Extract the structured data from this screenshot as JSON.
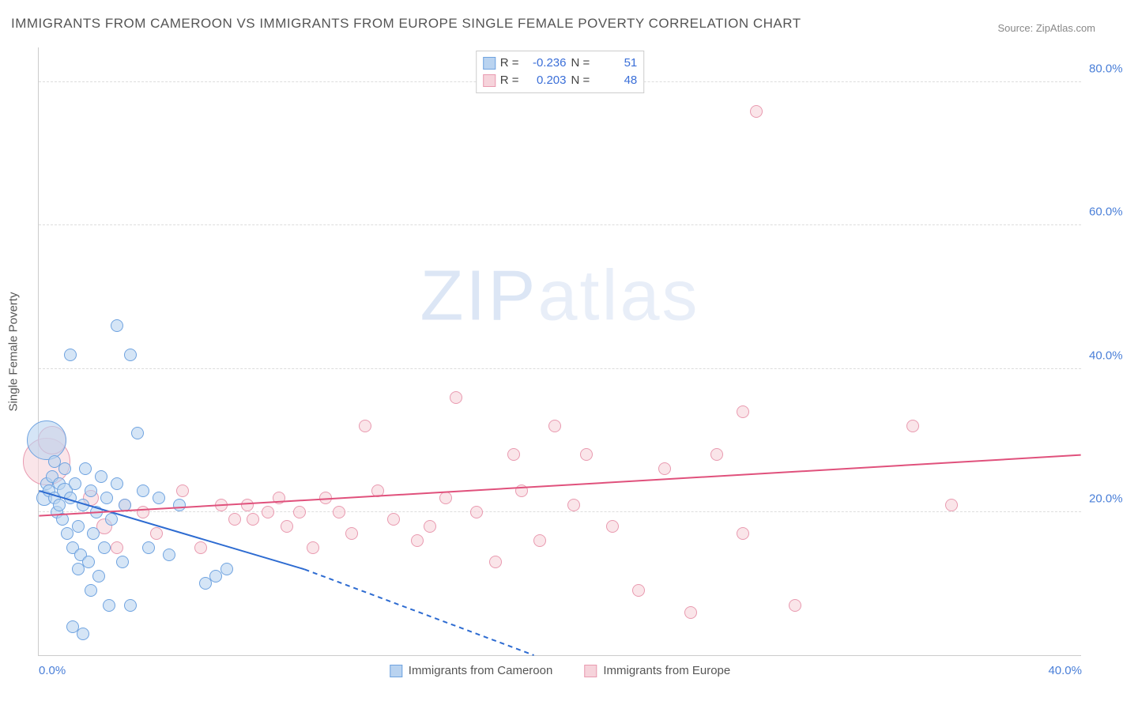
{
  "title": "IMMIGRANTS FROM CAMEROON VS IMMIGRANTS FROM EUROPE SINGLE FEMALE POVERTY CORRELATION CHART",
  "source": "Source: ZipAtlas.com",
  "watermark": {
    "zip": "ZIP",
    "atlas": "atlas"
  },
  "ylabel": "Single Female Poverty",
  "chart": {
    "type": "scatter",
    "xlim": [
      0,
      40
    ],
    "ylim": [
      0,
      85
    ],
    "xtick_labels": [
      "0.0%",
      "40.0%"
    ],
    "xtick_positions": [
      0,
      40
    ],
    "ytick_labels": [
      "20.0%",
      "40.0%",
      "60.0%",
      "80.0%"
    ],
    "ytick_positions": [
      20,
      40,
      60,
      80
    ],
    "background_color": "#ffffff",
    "grid_color": "#dddddd",
    "axis_color": "#cccccc",
    "tick_color": "#4a7fd8",
    "marker_default_radius": 8,
    "series": [
      {
        "name": "Immigrants from Cameroon",
        "fill": "#b9d3f0",
        "stroke": "#6fa3e0",
        "R": "-0.236",
        "N": "51",
        "trend": {
          "x1": 0,
          "y1": 23,
          "x2_solid": 10.2,
          "y2_solid": 12,
          "x2_dash": 19,
          "y2_dash": 0,
          "color": "#2d6bd1",
          "width": 2
        },
        "points": [
          {
            "x": 0.2,
            "y": 22,
            "r": 10
          },
          {
            "x": 0.3,
            "y": 24,
            "r": 8
          },
          {
            "x": 0.3,
            "y": 30,
            "r": 25
          },
          {
            "x": 0.4,
            "y": 23,
            "r": 8
          },
          {
            "x": 0.5,
            "y": 25,
            "r": 8
          },
          {
            "x": 0.6,
            "y": 22,
            "r": 8
          },
          {
            "x": 0.6,
            "y": 27,
            "r": 8
          },
          {
            "x": 0.7,
            "y": 20,
            "r": 8
          },
          {
            "x": 0.8,
            "y": 24,
            "r": 8
          },
          {
            "x": 0.8,
            "y": 21,
            "r": 8
          },
          {
            "x": 0.9,
            "y": 19,
            "r": 8
          },
          {
            "x": 1.0,
            "y": 26,
            "r": 8
          },
          {
            "x": 1.0,
            "y": 23,
            "r": 10
          },
          {
            "x": 1.1,
            "y": 17,
            "r": 8
          },
          {
            "x": 1.2,
            "y": 22,
            "r": 8
          },
          {
            "x": 1.2,
            "y": 42,
            "r": 8
          },
          {
            "x": 1.3,
            "y": 15,
            "r": 8
          },
          {
            "x": 1.3,
            "y": 4,
            "r": 8
          },
          {
            "x": 1.4,
            "y": 24,
            "r": 8
          },
          {
            "x": 1.5,
            "y": 18,
            "r": 8
          },
          {
            "x": 1.5,
            "y": 12,
            "r": 8
          },
          {
            "x": 1.6,
            "y": 14,
            "r": 8
          },
          {
            "x": 1.7,
            "y": 21,
            "r": 8
          },
          {
            "x": 1.7,
            "y": 3,
            "r": 8
          },
          {
            "x": 1.8,
            "y": 26,
            "r": 8
          },
          {
            "x": 1.9,
            "y": 13,
            "r": 8
          },
          {
            "x": 2.0,
            "y": 23,
            "r": 8
          },
          {
            "x": 2.0,
            "y": 9,
            "r": 8
          },
          {
            "x": 2.1,
            "y": 17,
            "r": 8
          },
          {
            "x": 2.2,
            "y": 20,
            "r": 8
          },
          {
            "x": 2.3,
            "y": 11,
            "r": 8
          },
          {
            "x": 2.4,
            "y": 25,
            "r": 8
          },
          {
            "x": 2.5,
            "y": 15,
            "r": 8
          },
          {
            "x": 2.6,
            "y": 22,
            "r": 8
          },
          {
            "x": 2.7,
            "y": 7,
            "r": 8
          },
          {
            "x": 2.8,
            "y": 19,
            "r": 8
          },
          {
            "x": 3.0,
            "y": 46,
            "r": 8
          },
          {
            "x": 3.0,
            "y": 24,
            "r": 8
          },
          {
            "x": 3.2,
            "y": 13,
            "r": 8
          },
          {
            "x": 3.3,
            "y": 21,
            "r": 8
          },
          {
            "x": 3.5,
            "y": 42,
            "r": 8
          },
          {
            "x": 3.5,
            "y": 7,
            "r": 8
          },
          {
            "x": 3.8,
            "y": 31,
            "r": 8
          },
          {
            "x": 4.0,
            "y": 23,
            "r": 8
          },
          {
            "x": 4.2,
            "y": 15,
            "r": 8
          },
          {
            "x": 4.6,
            "y": 22,
            "r": 8
          },
          {
            "x": 5.0,
            "y": 14,
            "r": 8
          },
          {
            "x": 5.4,
            "y": 21,
            "r": 8
          },
          {
            "x": 6.4,
            "y": 10,
            "r": 8
          },
          {
            "x": 6.8,
            "y": 11,
            "r": 8
          },
          {
            "x": 7.2,
            "y": 12,
            "r": 8
          }
        ]
      },
      {
        "name": "Immigrants from Europe",
        "fill": "#f6d3db",
        "stroke": "#e99ab0",
        "R": "0.203",
        "N": "48",
        "trend": {
          "x1": 0,
          "y1": 19.5,
          "x2_solid": 40,
          "y2_solid": 28,
          "color": "#e0517c",
          "width": 2
        },
        "points": [
          {
            "x": 0.3,
            "y": 27,
            "r": 30
          },
          {
            "x": 0.5,
            "y": 30,
            "r": 18
          },
          {
            "x": 2.0,
            "y": 22,
            "r": 10
          },
          {
            "x": 2.5,
            "y": 18,
            "r": 10
          },
          {
            "x": 3.0,
            "y": 15,
            "r": 8
          },
          {
            "x": 3.3,
            "y": 21,
            "r": 8
          },
          {
            "x": 4.0,
            "y": 20,
            "r": 8
          },
          {
            "x": 4.5,
            "y": 17,
            "r": 8
          },
          {
            "x": 5.5,
            "y": 23,
            "r": 8
          },
          {
            "x": 6.2,
            "y": 15,
            "r": 8
          },
          {
            "x": 7.0,
            "y": 21,
            "r": 8
          },
          {
            "x": 7.5,
            "y": 19,
            "r": 8
          },
          {
            "x": 8.0,
            "y": 21,
            "r": 8
          },
          {
            "x": 8.2,
            "y": 19,
            "r": 8
          },
          {
            "x": 8.8,
            "y": 20,
            "r": 8
          },
          {
            "x": 9.2,
            "y": 22,
            "r": 8
          },
          {
            "x": 9.5,
            "y": 18,
            "r": 8
          },
          {
            "x": 10.0,
            "y": 20,
            "r": 8
          },
          {
            "x": 10.5,
            "y": 15,
            "r": 8
          },
          {
            "x": 11.0,
            "y": 22,
            "r": 8
          },
          {
            "x": 11.5,
            "y": 20,
            "r": 8
          },
          {
            "x": 12.0,
            "y": 17,
            "r": 8
          },
          {
            "x": 12.5,
            "y": 32,
            "r": 8
          },
          {
            "x": 13.0,
            "y": 23,
            "r": 8
          },
          {
            "x": 13.6,
            "y": 19,
            "r": 8
          },
          {
            "x": 14.5,
            "y": 16,
            "r": 8
          },
          {
            "x": 15.0,
            "y": 18,
            "r": 8
          },
          {
            "x": 15.6,
            "y": 22,
            "r": 8
          },
          {
            "x": 16.0,
            "y": 36,
            "r": 8
          },
          {
            "x": 16.8,
            "y": 20,
            "r": 8
          },
          {
            "x": 17.5,
            "y": 13,
            "r": 8
          },
          {
            "x": 18.2,
            "y": 28,
            "r": 8
          },
          {
            "x": 18.5,
            "y": 23,
            "r": 8
          },
          {
            "x": 19.2,
            "y": 16,
            "r": 8
          },
          {
            "x": 19.8,
            "y": 32,
            "r": 8
          },
          {
            "x": 20.5,
            "y": 21,
            "r": 8
          },
          {
            "x": 21.0,
            "y": 28,
            "r": 8
          },
          {
            "x": 22.0,
            "y": 18,
            "r": 8
          },
          {
            "x": 23.0,
            "y": 9,
            "r": 8
          },
          {
            "x": 24.0,
            "y": 26,
            "r": 8
          },
          {
            "x": 25.0,
            "y": 6,
            "r": 8
          },
          {
            "x": 26.0,
            "y": 28,
            "r": 8
          },
          {
            "x": 27.0,
            "y": 17,
            "r": 8
          },
          {
            "x": 27.5,
            "y": 76,
            "r": 8
          },
          {
            "x": 29.0,
            "y": 7,
            "r": 8
          },
          {
            "x": 33.5,
            "y": 32,
            "r": 8
          },
          {
            "x": 35.0,
            "y": 21,
            "r": 8
          },
          {
            "x": 27.0,
            "y": 34,
            "r": 8
          }
        ]
      }
    ],
    "legend": {
      "r_label": "R =",
      "n_label": "N ="
    }
  }
}
